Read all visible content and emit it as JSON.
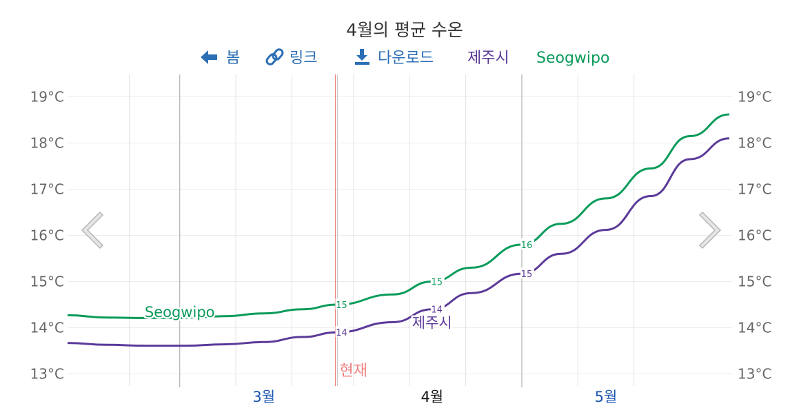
{
  "toolbar": {
    "view_label": "봄",
    "link_label": "링크",
    "download_label": "다운로드",
    "view_icon": "arrow-left-icon",
    "link_icon": "link-icon",
    "download_icon": "download-icon"
  },
  "navigation": {
    "prev_icon": "chevron-left-icon",
    "next_icon": "chevron-right-icon"
  },
  "now_label": "현재",
  "colors": {
    "jeju": "#5b3a99",
    "seogwipo": "#0a9b5a",
    "now": "#f08080",
    "link": "#1a56b0",
    "toolbar": "#2c6fb5"
  },
  "chart_data": {
    "type": "line",
    "title": "4월의 평균 수온",
    "x_domain": [
      "2024-02-10",
      "2024-05-31"
    ],
    "ylim": [
      12.8,
      19.3
    ],
    "y_ticks": [
      13,
      14,
      15,
      16,
      17,
      18,
      19
    ],
    "y_tick_labels": [
      "13°C",
      "14°C",
      "15°C",
      "16°C",
      "17°C",
      "18°C",
      "19°C"
    ],
    "grid": true,
    "month_labels": [
      {
        "label": "3월",
        "date": "2024-03-16",
        "current": false
      },
      {
        "label": "4월",
        "date": "2024-04-15",
        "current": true
      },
      {
        "label": "5월",
        "date": "2024-05-16",
        "current": false
      }
    ],
    "minor_grid_dates": [
      "2024-02-21",
      "2024-03-01",
      "2024-03-11",
      "2024-03-21",
      "2024-04-01",
      "2024-04-11",
      "2024-04-21",
      "2024-05-01",
      "2024-05-11",
      "2024-05-21"
    ],
    "month_boundaries": [
      "2024-03-01",
      "2024-05-01"
    ],
    "now_date": "2024-03-29",
    "legend": [
      "제주시",
      "Seogwipo"
    ],
    "series": [
      {
        "name": "제주시",
        "color": "#5b3a99",
        "points": [
          [
            "2024-02-10",
            13.67
          ],
          [
            "2024-02-17",
            13.63
          ],
          [
            "2024-02-24",
            13.61
          ],
          [
            "2024-03-02",
            13.61
          ],
          [
            "2024-03-09",
            13.64
          ],
          [
            "2024-03-16",
            13.69
          ],
          [
            "2024-03-23",
            13.8
          ],
          [
            "2024-03-29",
            13.9
          ],
          [
            "2024-04-08",
            14.12
          ],
          [
            "2024-04-15",
            14.4
          ],
          [
            "2024-04-22",
            14.75
          ],
          [
            "2024-05-01",
            15.17
          ],
          [
            "2024-05-08",
            15.6
          ],
          [
            "2024-05-16",
            16.12
          ],
          [
            "2024-05-24",
            16.85
          ],
          [
            "2024-05-31",
            17.65
          ],
          [
            "2024-06-07",
            18.1
          ]
        ],
        "labels": [
          {
            "date": "2024-03-29",
            "text": "14"
          },
          {
            "date": "2024-04-15",
            "text": "14"
          },
          {
            "date": "2024-05-01",
            "text": "15"
          }
        ],
        "name_label": {
          "date": "2024-04-15",
          "value": 14.12
        }
      },
      {
        "name": "Seogwipo",
        "color": "#0a9b5a",
        "points": [
          [
            "2024-02-10",
            14.27
          ],
          [
            "2024-02-17",
            14.22
          ],
          [
            "2024-02-24",
            14.21
          ],
          [
            "2024-03-02",
            14.21
          ],
          [
            "2024-03-09",
            14.25
          ],
          [
            "2024-03-16",
            14.31
          ],
          [
            "2024-03-23",
            14.4
          ],
          [
            "2024-03-29",
            14.5
          ],
          [
            "2024-04-08",
            14.72
          ],
          [
            "2024-04-15",
            15.0
          ],
          [
            "2024-04-22",
            15.3
          ],
          [
            "2024-05-01",
            15.8
          ],
          [
            "2024-05-08",
            16.25
          ],
          [
            "2024-05-16",
            16.8
          ],
          [
            "2024-05-24",
            17.45
          ],
          [
            "2024-05-31",
            18.15
          ],
          [
            "2024-06-07",
            18.62
          ]
        ],
        "labels": [
          {
            "date": "2024-03-29",
            "text": "15"
          },
          {
            "date": "2024-04-15",
            "text": "15"
          },
          {
            "date": "2024-05-01",
            "text": "16"
          }
        ],
        "name_label": {
          "date": "2024-03-01",
          "value": 14.35
        }
      }
    ]
  }
}
